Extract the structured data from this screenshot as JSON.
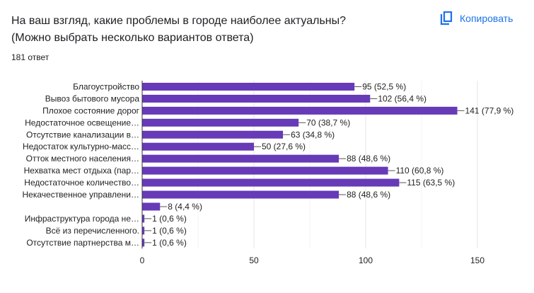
{
  "header": {
    "title_line1": "На ваш взгляд, какие проблемы в городе наиболее актуальны?",
    "title_line2": "(Можно выбрать несколько вариантов ответа)",
    "response_count": "181 ответ",
    "copy_label": "Копировать",
    "copy_icon": "copy-icon"
  },
  "colors": {
    "bar": "#673ab7",
    "accent": "#1a73e8"
  },
  "chart_data": {
    "type": "bar",
    "orientation": "horizontal",
    "categories": [
      "Благоустройство",
      "Вывоз бытового мусора",
      "Плохое состояние дорог",
      "Недостаточное освещение…",
      "Отсутствие канализации в…",
      "Недостаток культурно-масс…",
      "Отток местного населения…",
      "Нехватка мест отдыха (пар…",
      "Недостаточное количество…",
      "Некачественное управлени…",
      "",
      "Инфраструктура города не…",
      "Всё из перечисленного.",
      "Отсутствие партнерства м…"
    ],
    "values": [
      95,
      102,
      141,
      70,
      63,
      50,
      88,
      110,
      115,
      88,
      8,
      1,
      1,
      1
    ],
    "data_labels": [
      "95 (52,5 %)",
      "102 (56,4 %)",
      "141 (77,9 %)",
      "70 (38,7 %)",
      "63 (34,8 %)",
      "50 (27,6 %)",
      "88 (48,6 %)",
      "110 (60,8 %)",
      "115 (63,5 %)",
      "88 (48,6 %)",
      "8 (4,4 %)",
      "1 (0,6 %)",
      "1 (0,6 %)",
      "1 (0,6 %)"
    ],
    "xlim": [
      0,
      150
    ],
    "xticks": [
      "0",
      "50",
      "100",
      "150"
    ],
    "grid": true
  }
}
